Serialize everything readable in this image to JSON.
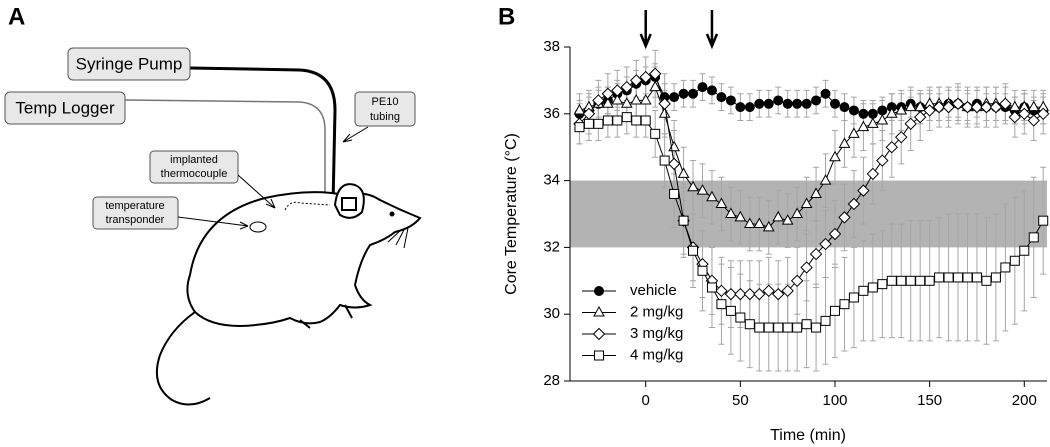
{
  "panel_a": {
    "label": "A",
    "syringe_pump": "Syringe Pump",
    "temp_logger": "Temp Logger",
    "pe10_tubing": [
      "PE10",
      "tubing"
    ],
    "implanted_thermocouple": [
      "implanted",
      "thermocouple"
    ],
    "temperature_transponder": [
      "temperature",
      "transponder"
    ]
  },
  "chart_data": {
    "type": "line",
    "panel_label": "B",
    "x_label": "Time (min)",
    "y_label": "Core Temperature (°C)",
    "xlim": [
      -40,
      212
    ],
    "ylim": [
      28,
      38
    ],
    "xticks": [
      0,
      50,
      100,
      150,
      200
    ],
    "yticks": [
      28,
      30,
      32,
      34,
      36,
      38
    ],
    "band": [
      32,
      34
    ],
    "band_color": "#b3b3b3",
    "arrows": [
      0,
      35
    ],
    "legend": "lower left",
    "x": [
      -35,
      -30,
      -25,
      -20,
      -15,
      -10,
      -5,
      0,
      5,
      10,
      15,
      20,
      25,
      30,
      35,
      40,
      45,
      50,
      55,
      60,
      65,
      70,
      75,
      80,
      85,
      90,
      95,
      100,
      105,
      110,
      115,
      120,
      125,
      130,
      135,
      140,
      145,
      150,
      155,
      160,
      165,
      170,
      175,
      180,
      185,
      190,
      195,
      200,
      205,
      210
    ],
    "series": [
      {
        "name": "vehicle",
        "color": "#000000",
        "marker": "circle",
        "filled": true,
        "values": [
          36.0,
          36.1,
          36.3,
          36.4,
          36.6,
          36.7,
          36.9,
          37.0,
          37.1,
          36.5,
          36.5,
          36.6,
          36.6,
          36.8,
          36.7,
          36.5,
          36.4,
          36.2,
          36.2,
          36.3,
          36.3,
          36.4,
          36.3,
          36.3,
          36.3,
          36.4,
          36.6,
          36.3,
          36.2,
          36.1,
          36.0,
          36.0,
          36.1,
          36.2,
          36.2,
          36.3,
          36.2,
          36.2,
          36.2,
          36.3,
          36.3,
          36.2,
          36.3,
          36.2,
          36.2,
          36.2,
          36.1,
          36.2,
          36.1,
          36.1
        ],
        "errors": [
          0.4,
          0.4,
          0.4,
          0.4,
          0.4,
          0.4,
          0.4,
          0.4,
          0.4,
          0.4,
          0.4,
          0.4,
          0.4,
          0.4,
          0.4,
          0.4,
          0.4,
          0.4,
          0.4,
          0.4,
          0.4,
          0.4,
          0.4,
          0.4,
          0.4,
          0.4,
          0.4,
          0.4,
          0.4,
          0.4,
          0.4,
          0.4,
          0.4,
          0.4,
          0.4,
          0.4,
          0.4,
          0.4,
          0.4,
          0.4,
          0.4,
          0.4,
          0.4,
          0.4,
          0.4,
          0.4,
          0.4,
          0.4,
          0.4,
          0.4
        ]
      },
      {
        "name": "2 mg/kg",
        "color": "#000000",
        "marker": "triangle",
        "filled": false,
        "values": [
          36.1,
          36.2,
          36.3,
          36.3,
          36.4,
          36.3,
          36.4,
          36.4,
          36.8,
          36.0,
          35.0,
          34.2,
          33.8,
          33.7,
          33.5,
          33.3,
          33.0,
          32.9,
          32.7,
          32.7,
          32.6,
          32.9,
          32.8,
          33.0,
          33.3,
          33.6,
          34.0,
          34.7,
          35.1,
          35.4,
          35.6,
          35.7,
          35.8,
          36.0,
          36.1,
          36.2,
          36.2,
          36.3,
          36.3,
          36.3,
          36.3,
          36.2,
          36.2,
          36.3,
          36.3,
          36.3,
          36.2,
          36.2,
          36.2,
          36.2
        ],
        "errors": [
          0.5,
          0.5,
          0.5,
          0.5,
          0.5,
          0.5,
          0.5,
          0.5,
          0.6,
          0.7,
          0.8,
          0.8,
          0.8,
          0.8,
          0.8,
          0.8,
          0.8,
          0.8,
          0.8,
          0.8,
          0.8,
          0.8,
          0.8,
          0.8,
          0.8,
          0.8,
          0.8,
          0.8,
          0.7,
          0.7,
          0.7,
          0.6,
          0.6,
          0.6,
          0.6,
          0.6,
          0.5,
          0.5,
          0.5,
          0.5,
          0.5,
          0.5,
          0.5,
          0.5,
          0.5,
          0.5,
          0.5,
          0.5,
          0.5,
          0.5
        ]
      },
      {
        "name": "3 mg/kg",
        "color": "#000000",
        "marker": "diamond",
        "filled": false,
        "values": [
          35.7,
          36.0,
          36.4,
          36.6,
          36.7,
          36.8,
          37.0,
          37.1,
          37.2,
          36.3,
          34.5,
          32.8,
          32.0,
          31.5,
          31.0,
          30.7,
          30.6,
          30.6,
          30.6,
          30.6,
          30.7,
          30.6,
          30.7,
          31.0,
          31.4,
          31.8,
          32.1,
          32.4,
          32.9,
          33.3,
          33.7,
          34.2,
          34.6,
          35.0,
          35.3,
          35.7,
          35.9,
          36.1,
          36.2,
          36.2,
          36.3,
          36.2,
          36.2,
          36.2,
          36.2,
          36.3,
          35.9,
          36.0,
          35.8,
          36.0
        ],
        "errors": [
          0.6,
          0.6,
          0.6,
          0.6,
          0.6,
          0.6,
          0.6,
          0.6,
          0.7,
          0.9,
          1.0,
          1.0,
          1.0,
          1.0,
          1.0,
          1.0,
          1.0,
          1.0,
          1.0,
          1.0,
          1.0,
          1.0,
          1.0,
          1.0,
          1.0,
          1.0,
          1.0,
          1.0,
          1.0,
          1.0,
          1.0,
          0.9,
          0.9,
          0.9,
          0.8,
          0.8,
          0.7,
          0.6,
          0.6,
          0.6,
          0.6,
          0.6,
          0.6,
          0.6,
          0.6,
          0.6,
          0.6,
          0.6,
          0.6,
          0.6
        ]
      },
      {
        "name": "4 mg/kg",
        "color": "#000000",
        "marker": "square",
        "filled": false,
        "values": [
          35.6,
          35.7,
          35.7,
          35.8,
          35.8,
          35.9,
          35.8,
          35.8,
          35.4,
          34.6,
          33.6,
          32.8,
          31.9,
          31.3,
          30.8,
          30.3,
          30.1,
          29.9,
          29.7,
          29.6,
          29.6,
          29.6,
          29.6,
          29.6,
          29.7,
          29.6,
          29.8,
          30.1,
          30.3,
          30.5,
          30.7,
          30.8,
          30.9,
          31.0,
          31.0,
          31.0,
          31.0,
          31.0,
          31.1,
          31.1,
          31.1,
          31.1,
          31.1,
          31.0,
          31.1,
          31.4,
          31.6,
          31.9,
          32.3,
          32.8
        ],
        "errors": [
          0.5,
          0.5,
          0.5,
          0.5,
          0.5,
          0.5,
          0.5,
          0.5,
          0.7,
          0.8,
          1.0,
          1.1,
          1.1,
          1.2,
          1.2,
          1.2,
          1.3,
          1.3,
          1.3,
          1.3,
          1.3,
          1.3,
          1.3,
          1.3,
          1.3,
          1.3,
          1.3,
          1.4,
          1.4,
          1.5,
          1.5,
          1.6,
          1.6,
          1.7,
          1.7,
          1.8,
          1.8,
          1.8,
          1.8,
          1.9,
          1.9,
          1.9,
          1.9,
          1.9,
          1.9,
          1.9,
          1.9,
          1.8,
          1.8,
          1.6
        ]
      }
    ]
  }
}
